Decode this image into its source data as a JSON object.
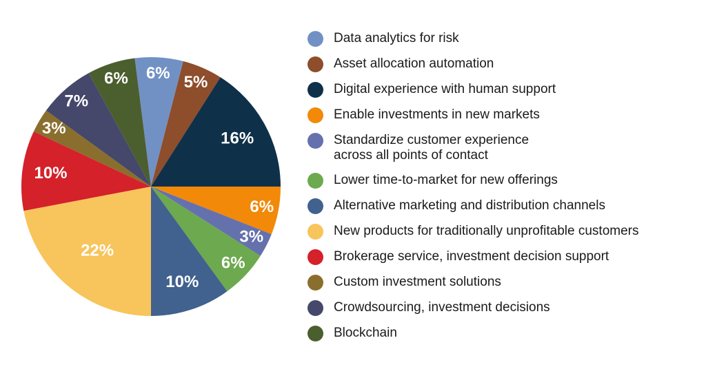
{
  "chart_data": {
    "type": "pie",
    "title": "",
    "background": "#ffffff",
    "legend_position": "right",
    "start_angle_deg": -7.2,
    "direction": "clockwise",
    "slice_label_color": "#ffffff",
    "legend_text_color": "#1a1a1a",
    "slices": [
      {
        "label": "Data analytics for risk",
        "value": 6,
        "display": "6%",
        "color": "#7191c5"
      },
      {
        "label": "Asset allocation automation",
        "value": 5,
        "display": "5%",
        "color": "#8e4d2b"
      },
      {
        "label": "Digital experience with human support",
        "value": 16,
        "display": "16%",
        "color": "#0f3049"
      },
      {
        "label": "Enable investments in new markets",
        "value": 6,
        "display": "6%",
        "color": "#f28908"
      },
      {
        "label": "Standardize customer experience across all points of contact",
        "label_display": "Standardize customer experience\nacross all points of contact",
        "value": 3,
        "display": "3%",
        "color": "#6571ad"
      },
      {
        "label": "Lower time-to-market for new offerings",
        "value": 6,
        "display": "6%",
        "color": "#6ca94f"
      },
      {
        "label": "Alternative marketing and distribution channels",
        "value": 10,
        "display": "10%",
        "color": "#41618e"
      },
      {
        "label": "New products for traditionally unprofitable customers",
        "value": 22,
        "display": "22%",
        "color": "#f8c45c"
      },
      {
        "label": "Brokerage service, investment decision support",
        "value": 10,
        "display": "10%",
        "color": "#d4212a"
      },
      {
        "label": "Custom investment solutions",
        "value": 3,
        "display": "3%",
        "color": "#8a6e2d"
      },
      {
        "label": "Crowdsourcing, investment decisions",
        "value": 7,
        "display": "7%",
        "color": "#45476b"
      },
      {
        "label": "Blockchain",
        "value": 6,
        "display": "6%",
        "color": "#4b5e2e"
      }
    ]
  }
}
